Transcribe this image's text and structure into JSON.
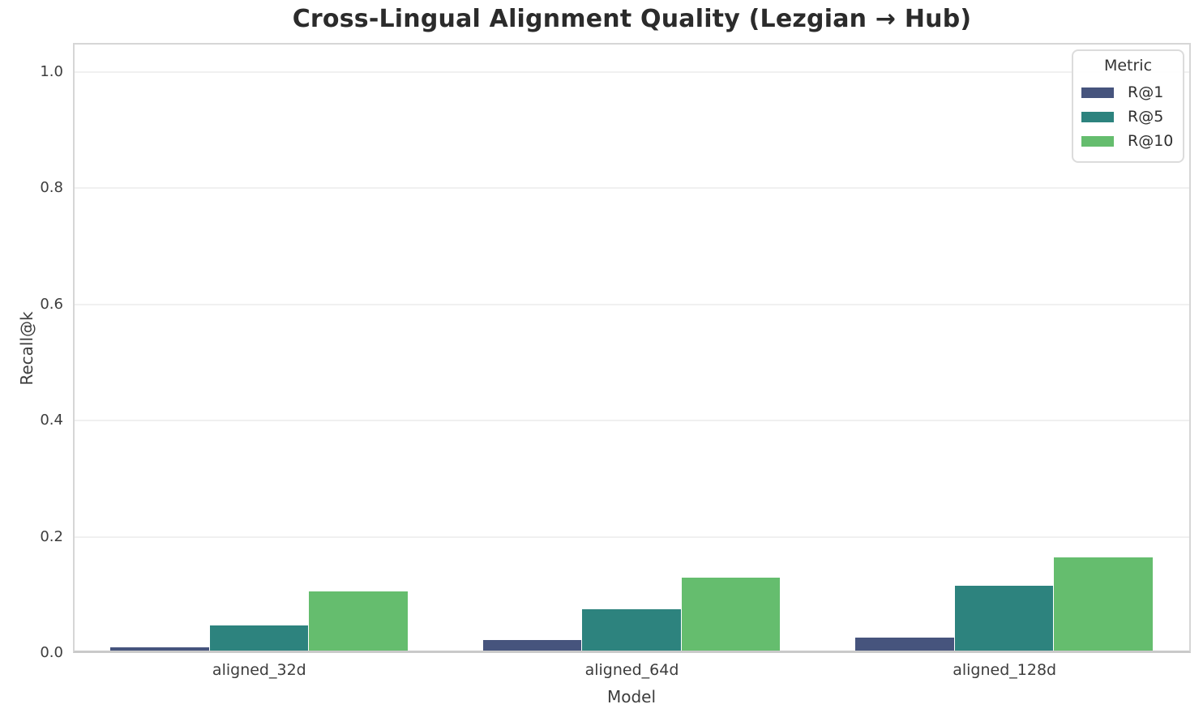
{
  "chart_data": {
    "type": "bar",
    "title": "Cross-Lingual Alignment Quality (Lezgian → Hub)",
    "xlabel": "Model",
    "ylabel": "Recall@k",
    "categories": [
      "aligned_32d",
      "aligned_64d",
      "aligned_128d"
    ],
    "series": [
      {
        "name": "R@1",
        "color": "#46547d",
        "values": [
          0.01,
          0.023,
          0.026
        ]
      },
      {
        "name": "R@5",
        "color": "#2d837e",
        "values": [
          0.048,
          0.076,
          0.116
        ]
      },
      {
        "name": "R@10",
        "color": "#65bd6e",
        "values": [
          0.106,
          0.13,
          0.165
        ]
      }
    ],
    "ylim": [
      0,
      1.05
    ],
    "yticks": [
      0.0,
      0.2,
      0.4,
      0.6,
      0.8,
      1.0
    ],
    "grid": "horizontal",
    "legend": {
      "title": "Metric",
      "position": "upper right"
    }
  },
  "colors": {
    "grid": "#f0f0f0",
    "spine": "#d6d6d6",
    "title_text": "#2b2b2b",
    "tick_text": "#3d3d3d"
  }
}
